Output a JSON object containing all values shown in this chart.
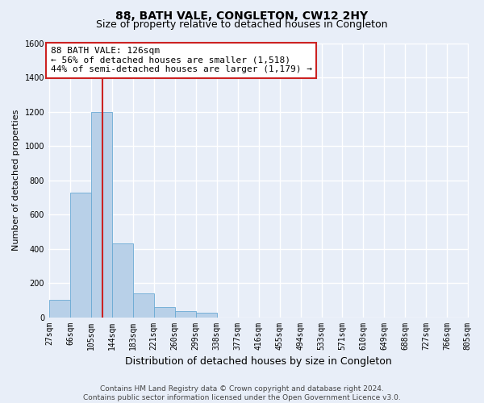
{
  "title": "88, BATH VALE, CONGLETON, CW12 2HY",
  "subtitle": "Size of property relative to detached houses in Congleton",
  "xlabel": "Distribution of detached houses by size in Congleton",
  "ylabel": "Number of detached properties",
  "footer1": "Contains HM Land Registry data © Crown copyright and database right 2024.",
  "footer2": "Contains public sector information licensed under the Open Government Licence v3.0.",
  "bin_labels": [
    "27sqm",
    "66sqm",
    "105sqm",
    "144sqm",
    "183sqm",
    "221sqm",
    "260sqm",
    "299sqm",
    "338sqm",
    "377sqm",
    "416sqm",
    "455sqm",
    "494sqm",
    "533sqm",
    "571sqm",
    "610sqm",
    "649sqm",
    "688sqm",
    "727sqm",
    "766sqm",
    "805sqm"
  ],
  "bin_edges": [
    27,
    66,
    105,
    144,
    183,
    221,
    260,
    299,
    338,
    377,
    416,
    455,
    494,
    533,
    571,
    610,
    649,
    688,
    727,
    766,
    805
  ],
  "bar_heights": [
    100,
    730,
    1200,
    430,
    140,
    60,
    35,
    25,
    0,
    0,
    0,
    0,
    0,
    0,
    0,
    0,
    0,
    0,
    0,
    0
  ],
  "bar_color": "#b8d0e8",
  "bar_edge_color": "#6aaad4",
  "property_line_x": 126,
  "property_line_color": "#cc2222",
  "annotation_text": "88 BATH VALE: 126sqm\n← 56% of detached houses are smaller (1,518)\n44% of semi-detached houses are larger (1,179) →",
  "annotation_box_color": "#cc2222",
  "ylim": [
    0,
    1600
  ],
  "yticks": [
    0,
    200,
    400,
    600,
    800,
    1000,
    1200,
    1400,
    1600
  ],
  "bg_color": "#e8eef8",
  "plot_bg_color": "#e8eef8",
  "grid_color": "#ffffff",
  "title_fontsize": 10,
  "subtitle_fontsize": 9,
  "xlabel_fontsize": 9,
  "ylabel_fontsize": 8,
  "tick_fontsize": 7,
  "annotation_fontsize": 8,
  "footer_fontsize": 6.5
}
